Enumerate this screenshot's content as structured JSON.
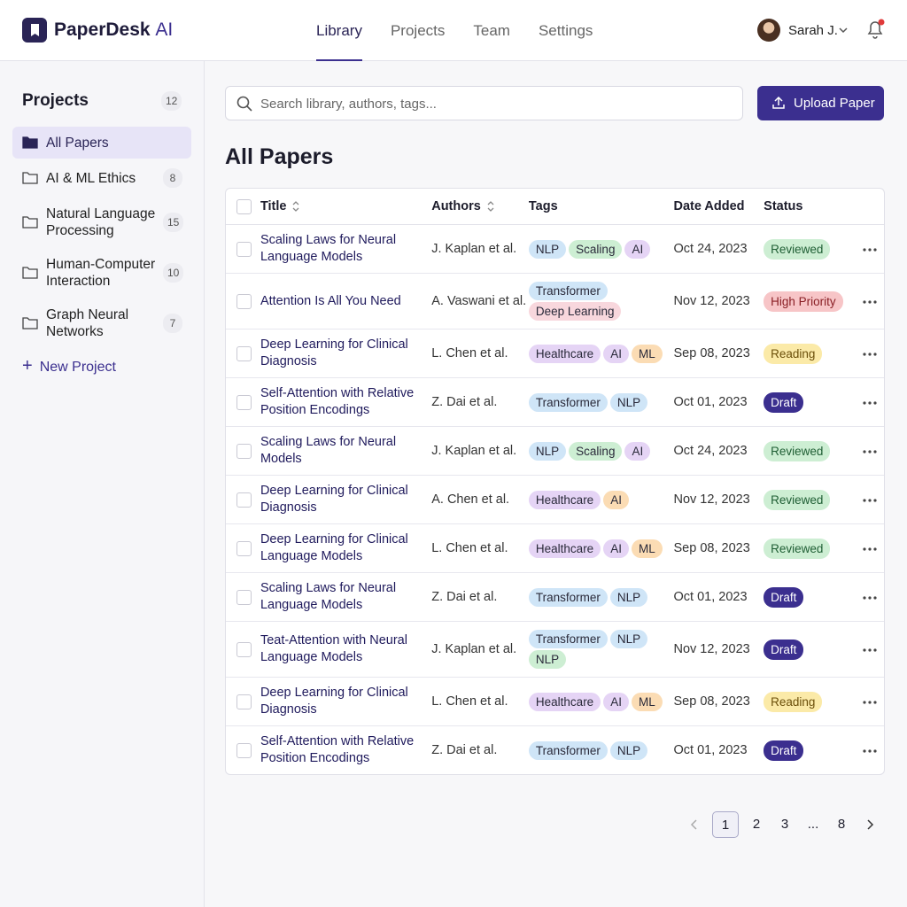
{
  "header": {
    "brand": "PaperDesk",
    "brand_suffix": "AI",
    "nav": [
      "Library",
      "Projects",
      "Team",
      "Settings"
    ],
    "user": "Sarah J."
  },
  "sidebar": {
    "title": "Projects",
    "count": 12,
    "projects": [
      {
        "name": "All Papers"
      },
      {
        "name": "AI & ML Ethics",
        "count": 8
      },
      {
        "name": "Natural Language Processing",
        "count": 15
      },
      {
        "name": "Human-Computer Interaction",
        "count": 10
      },
      {
        "name": "Graph Neural Networks",
        "count": 7
      }
    ],
    "new_project": "New Project"
  },
  "search_placeholder": "Search library, authors, tags...",
  "upload": "Upload Paper",
  "table": {
    "title": "All Papers",
    "columns": [
      "Title",
      "Authors",
      "Tags",
      "Date Added",
      "Status"
    ],
    "rows": [
      {
        "title": "Scaling Laws for Neural Language Models",
        "authors": "J. Kaplan et al.",
        "tags": [
          {
            "text": "NLP",
            "color": "#cfe5f7"
          },
          {
            "text": "Scaling",
            "color": "#cdeed3"
          },
          {
            "text": "AI",
            "color": "#e5d4f5"
          }
        ],
        "date": "Oct 24, 2023",
        "status": {
          "text": "Reviewed",
          "color": "#cdeed3",
          "text_color": "#1f5e34"
        }
      },
      {
        "title": "Attention Is All You Need",
        "authors": "A. Vaswani et al.",
        "tags": [
          {
            "text": "Transformer",
            "color": "#cfe5f7"
          },
          {
            "text": "Deep Learning",
            "color": "#f8d7dd"
          }
        ],
        "date": "Nov 12, 2023",
        "status": {
          "text": "High Priority",
          "color": "#f7c5c7",
          "text_color": "#8a1f25"
        }
      },
      {
        "title": "Deep Learning for Clinical Diagnosis",
        "authors": "L. Chen et al.",
        "tags": [
          {
            "text": "Healthcare",
            "color": "#e5d4f5"
          },
          {
            "text": "AI",
            "color": "#e5d4f5"
          },
          {
            "text": "ML",
            "color": "#fbdcb4"
          }
        ],
        "date": "Sep 08, 2023",
        "status": {
          "text": "Reading",
          "color": "#fbeaa8",
          "text_color": "#6b4f0a"
        }
      },
      {
        "title": "Self-Attention with Relative Position Encodings",
        "authors": "Z. Dai et al.",
        "tags": [
          {
            "text": "Transformer",
            "color": "#cfe5f7"
          },
          {
            "text": "NLP",
            "color": "#cfe5f7"
          }
        ],
        "date": "Oct 01, 2023",
        "status": {
          "text": "Draft",
          "color": "#3b2f8f",
          "text_color": "#ffffff"
        }
      },
      {
        "title": "Scaling Laws for Neural Models",
        "authors": "J. Kaplan et al.",
        "tags": [
          {
            "text": "NLP",
            "color": "#cfe5f7"
          },
          {
            "text": "Scaling",
            "color": "#cdeed3"
          },
          {
            "text": "AI",
            "color": "#e5d4f5"
          }
        ],
        "date": "Oct 24, 2023",
        "status": {
          "text": "Reviewed",
          "color": "#cdeed3",
          "text_color": "#1f5e34"
        }
      },
      {
        "title": "Deep Learning for Clinical Diagnosis",
        "authors": "A. Chen et al.",
        "tags": [
          {
            "text": "Healthcare",
            "color": "#e5d4f5"
          },
          {
            "text": "AI",
            "color": "#fbdcb4"
          }
        ],
        "date": "Nov 12, 2023",
        "status": {
          "text": "Reviewed",
          "color": "#cdeed3",
          "text_color": "#1f5e34"
        }
      },
      {
        "title": "Deep Learning for Clinical Language Models",
        "authors": "L. Chen et al.",
        "tags": [
          {
            "text": "Healthcare",
            "color": "#e5d4f5"
          },
          {
            "text": "AI",
            "color": "#e5d4f5"
          },
          {
            "text": "ML",
            "color": "#fbdcb4"
          }
        ],
        "date": "Sep 08, 2023",
        "status": {
          "text": "Reviewed",
          "color": "#cdeed3",
          "text_color": "#1f5e34"
        }
      },
      {
        "title": "Scaling Laws for Neural Language Models",
        "authors": "Z. Dai et al.",
        "tags": [
          {
            "text": "Transformer",
            "color": "#cfe5f7"
          },
          {
            "text": "NLP",
            "color": "#cfe5f7"
          }
        ],
        "date": "Oct 01, 2023",
        "status": {
          "text": "Draft",
          "color": "#3b2f8f",
          "text_color": "#ffffff"
        }
      },
      {
        "title": "Teat-Attention with Neural Language Models",
        "authors": "J. Kaplan et al.",
        "tags": [
          {
            "text": "Transformer",
            "color": "#cfe5f7"
          },
          {
            "text": "NLP",
            "color": "#cfe5f7"
          },
          {
            "text": "NLP",
            "color": "#cdeed3"
          }
        ],
        "date": "Nov 12, 2023",
        "status": {
          "text": "Draft",
          "color": "#3b2f8f",
          "text_color": "#ffffff"
        }
      },
      {
        "title": "Deep Learning for Clinical Diagnosis",
        "authors": "L. Chen et al.",
        "tags": [
          {
            "text": "Healthcare",
            "color": "#e5d4f5"
          },
          {
            "text": "AI",
            "color": "#e5d4f5"
          },
          {
            "text": "ML",
            "color": "#fbdcb4"
          }
        ],
        "date": "Sep 08, 2023",
        "status": {
          "text": "Reading",
          "color": "#fbeaa8",
          "text_color": "#6b4f0a"
        }
      },
      {
        "title": "Self-Attention with Relative Position Encodings",
        "authors": "Z. Dai et al.",
        "tags": [
          {
            "text": "Transformer",
            "color": "#cfe5f7"
          },
          {
            "text": "NLP",
            "color": "#cfe5f7"
          }
        ],
        "date": "Oct 01, 2023",
        "status": {
          "text": "Draft",
          "color": "#3b2f8f",
          "text_color": "#ffffff"
        }
      }
    ]
  },
  "pagination": [
    1,
    2,
    3,
    "...",
    8
  ]
}
